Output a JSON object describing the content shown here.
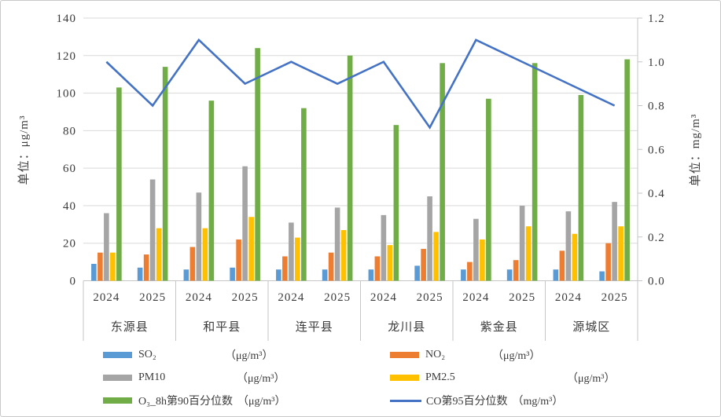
{
  "chart_data": {
    "type": "bar",
    "combo": "clustered-column with line on secondary axis",
    "title": "",
    "grid": true,
    "legend_position": "bottom",
    "categories": [
      "东源县 2024",
      "东源县 2025",
      "和平县 2024",
      "和平县 2025",
      "连平县 2024",
      "连平县 2025",
      "龙川县 2024",
      "龙川县 2025",
      "紫金县 2024",
      "紫金县 2025",
      "源城区 2024",
      "源城区 2025"
    ],
    "group_labels": [
      "东源县",
      "和平县",
      "连平县",
      "龙川县",
      "紫金县",
      "源城区"
    ],
    "year_row": [
      "2024",
      "2025",
      "2024",
      "2025",
      "2024",
      "2025",
      "2024",
      "2025",
      "2024",
      "2025",
      "2024",
      "2025"
    ],
    "left_axis": {
      "title": "单位：μg/m³",
      "min": 0,
      "max": 140,
      "step": 20,
      "ticks": [
        "0",
        "20",
        "40",
        "60",
        "80",
        "100",
        "120",
        "140"
      ]
    },
    "right_axis": {
      "title": "单位：mg/m³",
      "min": 0,
      "max": 1.2,
      "step": 0.2,
      "ticks": [
        "0.0",
        "0.2",
        "0.4",
        "0.6",
        "0.8",
        "1.0",
        "1.2"
      ]
    },
    "series": [
      {
        "name": "SO₂",
        "unit": "（μg/m³）",
        "type": "bar",
        "axis": "left",
        "color": "#5B9BD5",
        "values": [
          9,
          7,
          6,
          7,
          6,
          6,
          6,
          8,
          6,
          6,
          6,
          5
        ]
      },
      {
        "name": "NO₂",
        "unit": "（μg/m³）",
        "type": "bar",
        "axis": "left",
        "color": "#ED7D31",
        "values": [
          15,
          14,
          18,
          22,
          13,
          15,
          13,
          17,
          10,
          11,
          16,
          20
        ]
      },
      {
        "name": "PM10",
        "unit": "（μg/m³）",
        "type": "bar",
        "axis": "left",
        "color": "#A5A5A5",
        "values": [
          36,
          54,
          47,
          61,
          31,
          39,
          35,
          45,
          33,
          40,
          37,
          42
        ]
      },
      {
        "name": "PM2.5",
        "unit": "（μg/m³）",
        "type": "bar",
        "axis": "left",
        "color": "#FFC000",
        "values": [
          15,
          28,
          28,
          34,
          23,
          27,
          19,
          26,
          22,
          29,
          25,
          29
        ]
      },
      {
        "name": "O₃_8h第90百分位数",
        "unit": "（μg/m³）",
        "type": "bar",
        "axis": "left",
        "color": "#70AD47",
        "values": [
          103,
          114,
          96,
          124,
          92,
          120,
          83,
          116,
          97,
          116,
          99,
          118
        ]
      },
      {
        "name": "CO第95百分位数",
        "unit": "（mg/m³）",
        "type": "line",
        "axis": "right",
        "color": "#4472C4",
        "values": [
          1.0,
          0.8,
          1.1,
          0.9,
          1.0,
          0.9,
          1.0,
          0.7,
          1.1,
          1.0,
          0.9,
          0.8
        ]
      }
    ]
  }
}
